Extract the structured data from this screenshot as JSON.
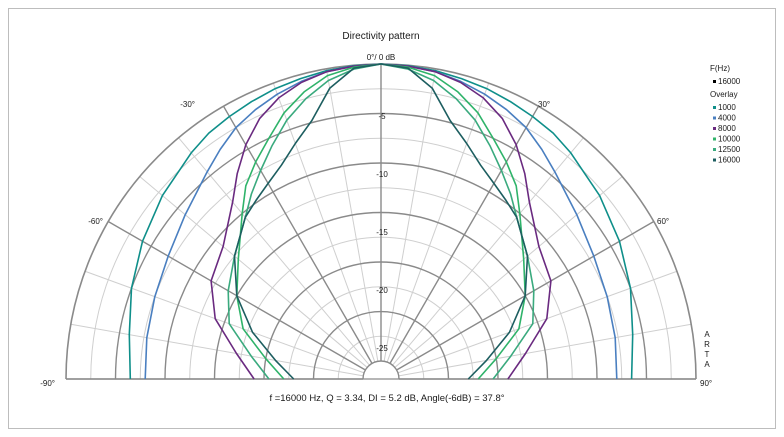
{
  "chart_data": {
    "type": "polar-line",
    "title": "Directivity pattern",
    "summary": "f =16000 Hz,  Q =  3.34,  DI =   5.2 dB,  Angle(-6dB) =  37.8°",
    "side_label": "ARTA",
    "angle_labels": {
      "top": "0°/ 0 dB",
      "minus30": "-30°",
      "plus30": "30°",
      "minus60": "-60°",
      "plus60": "60°",
      "minus90": "-90°",
      "plus90": "90°"
    },
    "db_labels": [
      "-5",
      "-10",
      "-15",
      "-20",
      "-25"
    ],
    "rlim_db": [
      -30,
      0
    ],
    "angles_deg": [
      -90,
      -80,
      -70,
      -60,
      -50,
      -40,
      -35,
      -30,
      -25,
      -20,
      -15,
      -10,
      -5,
      0,
      5,
      10,
      15,
      20,
      25,
      30,
      35,
      40,
      50,
      60,
      70,
      80,
      90
    ],
    "legend": {
      "title": "F(Hz)",
      "current": {
        "name": "16000",
        "color": "#000000"
      },
      "overlay_title": "Overlay",
      "overlay": [
        {
          "name": "1000",
          "color": "#0f8f8a"
        },
        {
          "name": "4000",
          "color": "#4a7fc0"
        },
        {
          "name": "8000",
          "color": "#6a2a80"
        },
        {
          "name": "10000",
          "color": "#2fb36a"
        },
        {
          "name": "12500",
          "color": "#3aaa7e"
        },
        {
          "name": "16000",
          "color": "#1d5e60"
        }
      ]
    },
    "series": [
      {
        "name": "1000",
        "color": "#0f8f8a",
        "values": [
          -6.5,
          -6.0,
          -5.0,
          -4.0,
          -3.0,
          -2.0,
          -1.5,
          -1.2,
          -0.9,
          -0.6,
          -0.4,
          -0.2,
          -0.05,
          0,
          -0.05,
          -0.2,
          -0.4,
          -0.6,
          -0.9,
          -1.2,
          -1.5,
          -2.0,
          -3.0,
          -4.0,
          -5.0,
          -6.0,
          -6.5
        ]
      },
      {
        "name": "4000",
        "color": "#4a7fc0",
        "values": [
          -8.0,
          -7.8,
          -7.5,
          -7.0,
          -6.0,
          -4.5,
          -3.5,
          -2.5,
          -1.8,
          -1.2,
          -0.7,
          -0.3,
          -0.1,
          0,
          -0.1,
          -0.3,
          -0.7,
          -1.2,
          -1.8,
          -2.5,
          -3.5,
          -4.5,
          -6.0,
          -7.0,
          -7.5,
          -7.8,
          -8.0
        ]
      },
      {
        "name": "8000",
        "color": "#6a2a80",
        "values": [
          -19.0,
          -17.0,
          -14.0,
          -12.0,
          -11.0,
          -8.5,
          -6.5,
          -4.5,
          -2.8,
          -1.6,
          -0.8,
          -0.3,
          -0.1,
          0,
          -0.1,
          -0.3,
          -0.8,
          -1.6,
          -2.8,
          -4.5,
          -6.5,
          -8.5,
          -11.0,
          -12.0,
          -14.0,
          -17.0,
          -19.0
        ]
      },
      {
        "name": "10000",
        "color": "#2fb36a",
        "values": [
          -22.0,
          -20.0,
          -17.0,
          -15.0,
          -13.0,
          -10.0,
          -8.0,
          -6.5,
          -5.0,
          -3.2,
          -1.8,
          -0.7,
          -0.2,
          0,
          -0.2,
          -0.7,
          -1.8,
          -3.2,
          -5.0,
          -6.5,
          -8.0,
          -10.0,
          -13.0,
          -15.0,
          -17.0,
          -20.0,
          -22.0
        ]
      },
      {
        "name": "12500",
        "color": "#3aaa7e",
        "values": [
          -20.5,
          -18.5,
          -15.5,
          -14.0,
          -12.5,
          -10.5,
          -9.0,
          -7.5,
          -5.8,
          -4.0,
          -2.5,
          -1.2,
          -0.4,
          0,
          -0.4,
          -1.2,
          -2.5,
          -4.0,
          -5.8,
          -7.5,
          -9.0,
          -10.5,
          -12.5,
          -14.0,
          -15.5,
          -18.5,
          -20.5
        ]
      },
      {
        "name": "16000",
        "color": "#1d5e60",
        "values": [
          -23.0,
          -21.0,
          -18.0,
          -15.0,
          -12.5,
          -10.5,
          -9.8,
          -9.0,
          -8.0,
          -6.5,
          -4.8,
          -2.0,
          -0.3,
          0,
          -0.3,
          -2.0,
          -4.8,
          -6.5,
          -8.0,
          -9.0,
          -9.8,
          -10.5,
          -12.5,
          -15.0,
          -18.0,
          -21.0,
          -23.0
        ]
      }
    ]
  }
}
